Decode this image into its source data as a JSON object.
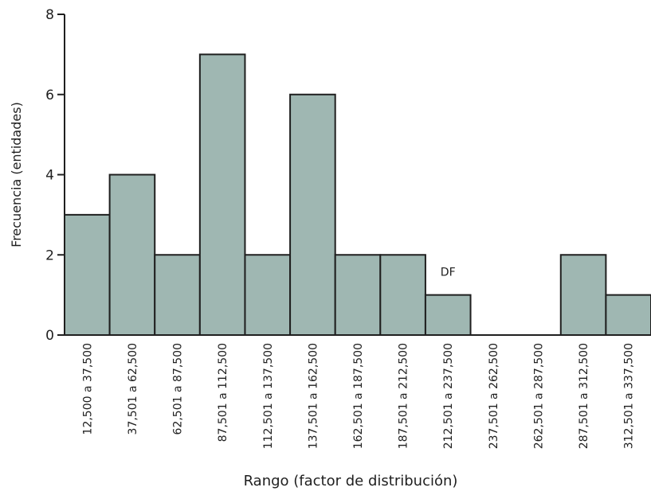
{
  "chart_data": {
    "type": "bar",
    "title": "",
    "xlabel": "Rango (factor de distribución)",
    "ylabel": "Frecuencia (entidades)",
    "ylim": [
      0,
      8
    ],
    "yticks": [
      "0",
      "2",
      "4",
      "6",
      "8"
    ],
    "categories": [
      "12,500 a 37,500",
      "37,501 a 62,500",
      "62,501 a 87,500",
      "87,501 a 112,500",
      "112,501 a 137,500",
      "137,501 a 162,500",
      "162,501 a 187,500",
      "187,501 a 212,500",
      "212,501 a 237,500",
      "237,501 a 262,500",
      "262,501 a 287,500",
      "287,501 a 312,500",
      "312,501 a 337,500"
    ],
    "values": [
      3,
      4,
      2,
      7,
      2,
      6,
      2,
      2,
      1,
      0,
      0,
      2,
      1
    ],
    "annotations": [
      {
        "text": "DF",
        "category": "212,501 a 237,500"
      }
    ],
    "grid": false,
    "legend": "none",
    "colors": {
      "bar_fill": "#9fb7b2",
      "stroke": "#1f1f1f",
      "text": "#1f1f1f",
      "background": "#ffffff"
    }
  }
}
